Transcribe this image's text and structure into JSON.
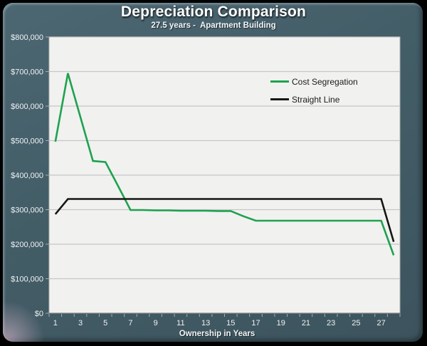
{
  "colors": {
    "panel_background": "#425c66",
    "outer_border": "#000000",
    "plot_background": "#f1f1f0",
    "gridline": "#c6c6c6",
    "plot_border": "#b5b5b5",
    "axis_bottom_line": "#7a7a7a",
    "tick": "#9db0b8",
    "axis_text": "#eef3f5",
    "title_text": "#ffffff",
    "legend_text": "#1b1b1b",
    "cost_segregation_line": "#1ea24f",
    "straight_line": "#161616"
  },
  "chart_data": {
    "type": "line",
    "title": "Depreciation Comparison",
    "subtitle": "27.5 years -  Apartment Building",
    "xlabel": "Ownership in Years",
    "ylabel": "",
    "x": [
      1,
      2,
      3,
      4,
      5,
      6,
      7,
      8,
      9,
      10,
      11,
      12,
      13,
      14,
      15,
      16,
      17,
      18,
      19,
      20,
      21,
      22,
      23,
      24,
      25,
      26,
      27,
      28
    ],
    "x_tick_labels": [
      "1",
      "3",
      "5",
      "7",
      "9",
      "11",
      "13",
      "15",
      "17",
      "19",
      "21",
      "23",
      "25",
      "27"
    ],
    "x_tick_years": [
      1,
      3,
      5,
      7,
      9,
      11,
      13,
      15,
      17,
      19,
      21,
      23,
      25,
      27
    ],
    "y_tick_values": [
      0,
      100000,
      200000,
      300000,
      400000,
      500000,
      600000,
      700000,
      800000
    ],
    "y_tick_labels": [
      "$0",
      "$100,000",
      "$200,000",
      "$300,000",
      "$400,000",
      "$500,000",
      "$600,000",
      "$700,000",
      "$800,000"
    ],
    "ylim": [
      0,
      800000
    ],
    "grid": true,
    "legend_position": "inside-upper-right",
    "series": [
      {
        "name": "Cost Segregation",
        "color": "#1ea24f",
        "values": [
          497000,
          695000,
          568000,
          441000,
          438000,
          369000,
          299000,
          299000,
          298000,
          298000,
          297000,
          297000,
          297000,
          296000,
          296000,
          281000,
          268000,
          268000,
          268000,
          268000,
          268000,
          268000,
          268000,
          268000,
          268000,
          268000,
          268000,
          168000
        ]
      },
      {
        "name": "Straight Line",
        "color": "#161616",
        "values": [
          287000,
          331000,
          331000,
          331000,
          331000,
          331000,
          331000,
          331000,
          331000,
          331000,
          331000,
          331000,
          331000,
          331000,
          331000,
          331000,
          331000,
          331000,
          331000,
          331000,
          331000,
          331000,
          331000,
          331000,
          331000,
          331000,
          331000,
          207000
        ]
      }
    ]
  }
}
